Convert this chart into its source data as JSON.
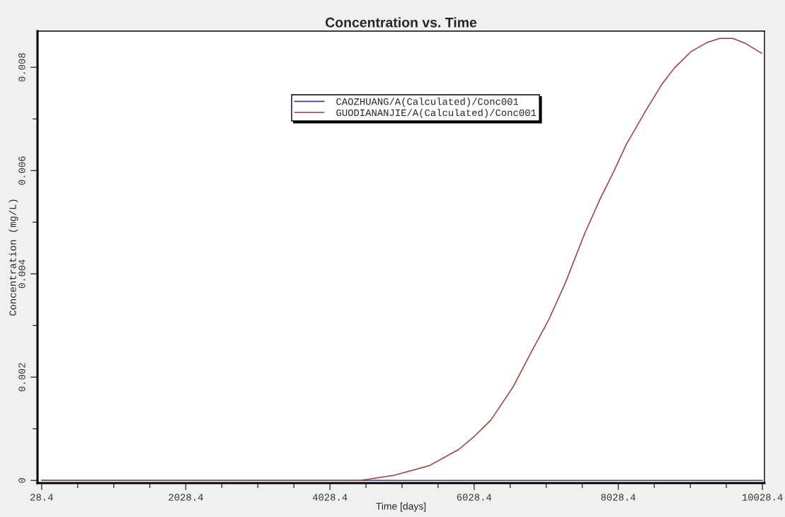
{
  "chart_data": {
    "type": "line",
    "title": "Concentration vs. Time",
    "xlabel": "Time [days]",
    "ylabel": "Concentration (mg/L)",
    "xlim": [
      -29,
      10057
    ],
    "ylim": [
      -5e-05,
      0.0087
    ],
    "xticks": [
      28.4,
      {
        "value": 528.4,
        "label": null
      },
      {
        "value": 1028.4,
        "label": null
      },
      {
        "value": 1528.4,
        "label": null
      },
      2028.4,
      {
        "value": 2528.4,
        "label": null
      },
      {
        "value": 3028.4,
        "label": null
      },
      {
        "value": 3528.4,
        "label": null
      },
      4028.4,
      {
        "value": 4528.4,
        "label": null
      },
      {
        "value": 5028.4,
        "label": null
      },
      {
        "value": 5528.4,
        "label": null
      },
      6028.4,
      {
        "value": 6528.4,
        "label": null
      },
      {
        "value": 7028.4,
        "label": null
      },
      {
        "value": 7528.4,
        "label": null
      },
      8028.4,
      {
        "value": 8528.4,
        "label": null
      },
      {
        "value": 9028.4,
        "label": null
      },
      {
        "value": 9528.4,
        "label": null
      },
      10028.4
    ],
    "yticks": [
      0,
      {
        "value": 0.001,
        "label": null
      },
      0.002,
      {
        "value": 0.003,
        "label": null
      },
      0.004,
      {
        "value": 0.005,
        "label": null
      },
      0.006,
      {
        "value": 0.007,
        "label": null
      },
      0.008
    ],
    "grid": false,
    "legend": "top",
    "marker": "none",
    "line_style": "solid",
    "series": [
      {
        "name": "CAOZHUANG/A(Calculated)/Conc001",
        "color": "#3a3a9a",
        "x": [
          28.4,
          10028.4
        ],
        "values": [
          0,
          0
        ]
      },
      {
        "name": "GUODIANANJIE/A(Calculated)/Conc001",
        "color": "#a03c3c",
        "x": [
          28.4,
          4069,
          4452,
          4919,
          5412,
          5815,
          6036,
          6262,
          6573,
          6842,
          7063,
          7293,
          7562,
          7783,
          7965,
          8138,
          8406,
          8633,
          8809,
          9035,
          9260,
          9438,
          9616,
          9798,
          10019
        ],
        "values": [
          0,
          0,
          0,
          0.0001,
          0.00029,
          0.0006,
          0.00086,
          0.00117,
          0.00182,
          0.00254,
          0.00311,
          0.00382,
          0.00478,
          0.00547,
          0.00598,
          0.0065,
          0.00715,
          0.00767,
          0.00799,
          0.0083,
          0.00848,
          0.00856,
          0.00856,
          0.00846,
          0.00827
        ]
      }
    ]
  }
}
